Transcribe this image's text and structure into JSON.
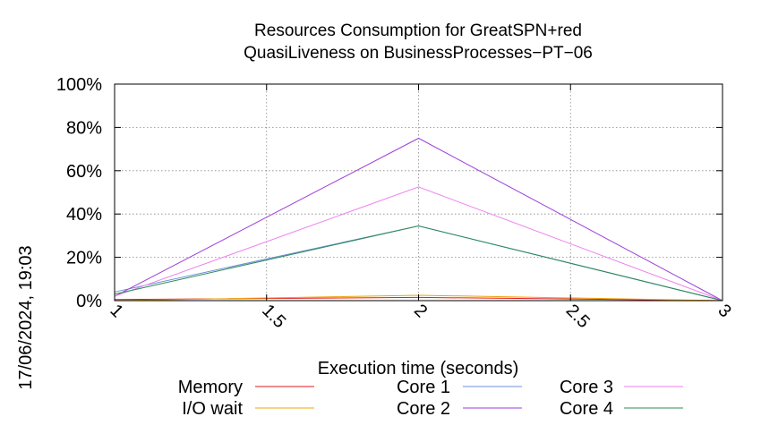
{
  "chart_data": {
    "type": "line",
    "title": [
      "Resources Consumption for GreatSPN+red",
      "QuasiLiveness on BusinessProcesses−PT−06"
    ],
    "xlabel": "Execution time (seconds)",
    "ylabel": "",
    "timestamp": "17/06/2024, 19:03",
    "xlim": [
      1,
      3
    ],
    "ylim": [
      0,
      100
    ],
    "x_ticks": [
      {
        "value": 1,
        "label": "1"
      },
      {
        "value": 1.5,
        "label": "1.5"
      },
      {
        "value": 2,
        "label": "2"
      },
      {
        "value": 2.5,
        "label": "2.5"
      },
      {
        "value": 3,
        "label": "3"
      }
    ],
    "y_ticks": [
      {
        "value": 0,
        "label": "0%"
      },
      {
        "value": 20,
        "label": "20%"
      },
      {
        "value": 40,
        "label": "40%"
      },
      {
        "value": 60,
        "label": "60%"
      },
      {
        "value": 80,
        "label": "80%"
      },
      {
        "value": 100,
        "label": "100%"
      }
    ],
    "grid": true,
    "legend_position": "bottom",
    "x": [
      1,
      2,
      3
    ],
    "series": [
      {
        "name": "Memory",
        "color": "#e41a1c",
        "values": [
          0.5,
          1.5,
          0
        ]
      },
      {
        "name": "I/O wait",
        "color": "#f0a30a",
        "values": [
          0,
          2.5,
          0
        ]
      },
      {
        "name": "Core 1",
        "color": "#6a8fd8",
        "values": [
          4,
          34.5,
          0
        ]
      },
      {
        "name": "Core 2",
        "color": "#9d3fd9",
        "values": [
          2,
          75,
          0
        ]
      },
      {
        "name": "Core 3",
        "color": "#ee82ee",
        "values": [
          2,
          52.5,
          0
        ]
      },
      {
        "name": "Core 4",
        "color": "#2e8b57",
        "values": [
          3,
          34.5,
          0
        ]
      }
    ]
  }
}
